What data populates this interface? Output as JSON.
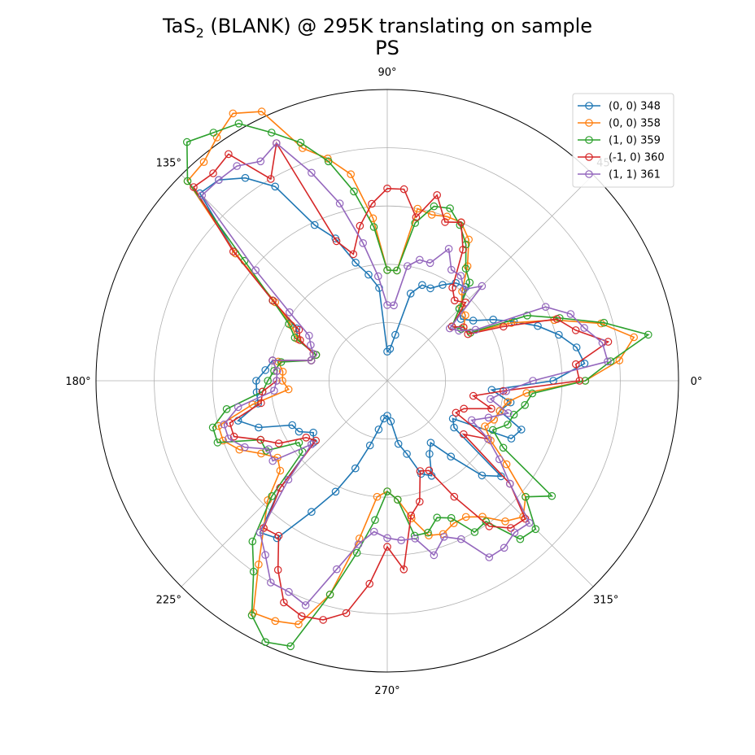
{
  "chart_data": {
    "type": "polar-line",
    "title_main": "TaS",
    "title_sub": "2",
    "title_rest": " (BLANK) @ 295K translating on sample",
    "title_line2": "PS",
    "angle_ticks": [
      "0°",
      "45°",
      "90°",
      "135°",
      "180°",
      "225°",
      "270°",
      "315°"
    ],
    "rlim": [
      0,
      1
    ],
    "grid": true,
    "legend_position": "upper-right",
    "angles_deg": [
      0,
      5,
      10,
      15,
      20,
      25,
      30,
      35,
      40,
      45,
      50,
      55,
      60,
      65,
      70,
      75,
      80,
      85,
      90,
      95,
      100,
      105,
      110,
      115,
      120,
      125,
      130,
      135,
      140,
      145,
      150,
      155,
      160,
      165,
      170,
      175,
      180,
      185,
      190,
      195,
      200,
      205,
      210,
      215,
      220,
      225,
      230,
      235,
      240,
      245,
      250,
      255,
      260,
      265,
      270,
      275,
      280,
      285,
      290,
      295,
      300,
      305,
      310,
      315,
      320,
      325,
      330,
      335,
      340,
      345,
      350,
      355
    ],
    "series": [
      {
        "name": "(0, 0) 348",
        "color": "#1f77b4",
        "values": [
          0.57,
          0.68,
          0.66,
          0.61,
          0.55,
          0.48,
          0.42,
          0.36,
          0.33,
          0.35,
          0.42,
          0.41,
          0.38,
          0.35,
          0.35,
          0.31,
          0.16,
          0.11,
          0.1,
          0.32,
          0.37,
          0.42,
          0.52,
          0.59,
          0.77,
          0.85,
          0.9,
          0.91,
          0.68,
          0.48,
          0.36,
          0.34,
          0.26,
          0.27,
          0.4,
          0.42,
          0.45,
          0.45,
          0.45,
          0.53,
          0.47,
          0.36,
          0.35,
          0.31,
          0.33,
          0.52,
          0.68,
          0.66,
          0.52,
          0.42,
          0.32,
          0.23,
          0.17,
          0.13,
          0.12,
          0.14,
          0.22,
          0.26,
          0.34,
          0.36,
          0.29,
          0.26,
          0.34,
          0.46,
          0.51,
          0.28,
          0.26,
          0.47,
          0.49,
          0.4,
          0.43,
          0.36
        ]
      },
      {
        "name": "(0, 0) 358",
        "color": "#ff7f0e",
        "values": [
          0.68,
          0.8,
          0.86,
          0.76,
          0.61,
          0.47,
          0.33,
          0.32,
          0.35,
          0.36,
          0.4,
          0.48,
          0.56,
          0.6,
          0.6,
          0.59,
          0.6,
          0.38,
          0.38,
          0.56,
          0.72,
          0.79,
          0.85,
          1.02,
          1.06,
          1.02,
          0.98,
          0.97,
          0.68,
          0.47,
          0.38,
          0.34,
          0.26,
          0.27,
          0.38,
          0.36,
          0.36,
          0.34,
          0.47,
          0.6,
          0.6,
          0.56,
          0.5,
          0.46,
          0.48,
          0.58,
          0.66,
          0.77,
          0.92,
          0.91,
          0.89,
          0.76,
          0.55,
          0.4,
          0.38,
          0.41,
          0.48,
          0.55,
          0.56,
          0.54,
          0.54,
          0.57,
          0.63,
          0.66,
          0.62,
          0.5,
          0.41,
          0.37,
          0.39,
          0.4,
          0.42,
          0.48
        ]
      },
      {
        "name": "(1, 0) 359",
        "color": "#2ca02c",
        "values": [
          0.68,
          0.77,
          0.91,
          0.77,
          0.63,
          0.53,
          0.33,
          0.31,
          0.29,
          0.35,
          0.44,
          0.47,
          0.54,
          0.59,
          0.63,
          0.62,
          0.55,
          0.38,
          0.38,
          0.53,
          0.66,
          0.78,
          0.87,
          0.94,
          1.02,
          1.04,
          1.07,
          0.97,
          0.64,
          0.48,
          0.39,
          0.35,
          0.26,
          0.27,
          0.37,
          0.39,
          0.41,
          0.43,
          0.56,
          0.62,
          0.62,
          0.48,
          0.48,
          0.37,
          0.38,
          0.56,
          0.72,
          0.8,
          0.93,
          0.99,
          0.97,
          0.76,
          0.6,
          0.48,
          0.38,
          0.41,
          0.54,
          0.54,
          0.5,
          0.52,
          0.6,
          0.59,
          0.71,
          0.72,
          0.62,
          0.69,
          0.46,
          0.4,
          0.44,
          0.45,
          0.48,
          0.5
        ]
      },
      {
        "name": "(-1, 0) 360",
        "color": "#d62728",
        "values": [
          0.66,
          0.65,
          0.77,
          0.67,
          0.62,
          0.44,
          0.32,
          0.32,
          0.29,
          0.38,
          0.36,
          0.39,
          0.52,
          0.6,
          0.58,
          0.66,
          0.57,
          0.66,
          0.66,
          0.61,
          0.54,
          0.45,
          0.51,
          0.9,
          0.8,
          0.95,
          0.93,
          0.94,
          0.69,
          0.48,
          0.35,
          0.33,
          0.27,
          0.27,
          0.4,
          0.38,
          0.38,
          0.43,
          0.44,
          0.56,
          0.56,
          0.48,
          0.43,
          0.34,
          0.32,
          0.52,
          0.66,
          0.65,
          0.75,
          0.84,
          0.86,
          0.85,
          0.81,
          0.7,
          0.57,
          0.65,
          0.47,
          0.43,
          0.33,
          0.34,
          0.46,
          0.61,
          0.66,
          0.67,
          0.55,
          0.32,
          0.4,
          0.26,
          0.28,
          0.37,
          0.3,
          0.4
        ]
      },
      {
        "name": "(1, 1) 361",
        "color": "#9467bd",
        "values": [
          0.5,
          0.76,
          0.75,
          0.7,
          0.67,
          0.6,
          0.35,
          0.3,
          0.28,
          0.46,
          0.41,
          0.44,
          0.44,
          0.5,
          0.43,
          0.43,
          0.4,
          0.26,
          0.26,
          0.36,
          0.48,
          0.63,
          0.76,
          0.9,
          0.87,
          0.9,
          0.9,
          0.9,
          0.59,
          0.41,
          0.31,
          0.29,
          0.27,
          0.27,
          0.4,
          0.38,
          0.38,
          0.39,
          0.52,
          0.58,
          0.58,
          0.54,
          0.47,
          0.48,
          0.34,
          0.48,
          0.68,
          0.73,
          0.8,
          0.8,
          0.82,
          0.67,
          0.57,
          0.52,
          0.54,
          0.55,
          0.55,
          0.62,
          0.57,
          0.6,
          0.7,
          0.7,
          0.68,
          0.69,
          0.55,
          0.47,
          0.4,
          0.32,
          0.37,
          0.43,
          0.36,
          0.41
        ]
      }
    ]
  }
}
